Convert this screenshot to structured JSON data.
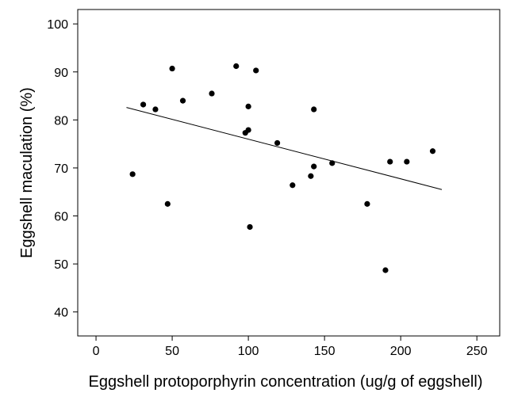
{
  "chart_data": {
    "type": "scatter",
    "xlabel": "Eggshell protoporphyrin concentration (ug/g of eggshell)",
    "ylabel": "Eggshell maculation (%)",
    "xlim": [
      -12,
      265
    ],
    "ylim": [
      35,
      103
    ],
    "xticks": [
      0,
      50,
      100,
      150,
      200,
      250
    ],
    "yticks": [
      40,
      50,
      60,
      70,
      80,
      90,
      100
    ],
    "grid": false,
    "points": [
      {
        "x": 24,
        "y": 68.7
      },
      {
        "x": 31,
        "y": 83.2
      },
      {
        "x": 39,
        "y": 82.2
      },
      {
        "x": 47,
        "y": 62.5
      },
      {
        "x": 50,
        "y": 90.7
      },
      {
        "x": 57,
        "y": 84.0
      },
      {
        "x": 76,
        "y": 85.5
      },
      {
        "x": 92,
        "y": 91.2
      },
      {
        "x": 98,
        "y": 77.3
      },
      {
        "x": 100,
        "y": 82.8
      },
      {
        "x": 100,
        "y": 77.9
      },
      {
        "x": 101,
        "y": 57.7
      },
      {
        "x": 105,
        "y": 90.3
      },
      {
        "x": 119,
        "y": 75.2
      },
      {
        "x": 129,
        "y": 66.4
      },
      {
        "x": 141,
        "y": 68.3
      },
      {
        "x": 143,
        "y": 82.2
      },
      {
        "x": 143,
        "y": 70.3
      },
      {
        "x": 155,
        "y": 71.0
      },
      {
        "x": 178,
        "y": 62.5
      },
      {
        "x": 190,
        "y": 48.7
      },
      {
        "x": 193,
        "y": 71.3
      },
      {
        "x": 204,
        "y": 71.3
      },
      {
        "x": 221,
        "y": 73.5
      }
    ],
    "fit_line": {
      "x": [
        20,
        227
      ],
      "y": [
        82.6,
        65.5
      ]
    }
  }
}
